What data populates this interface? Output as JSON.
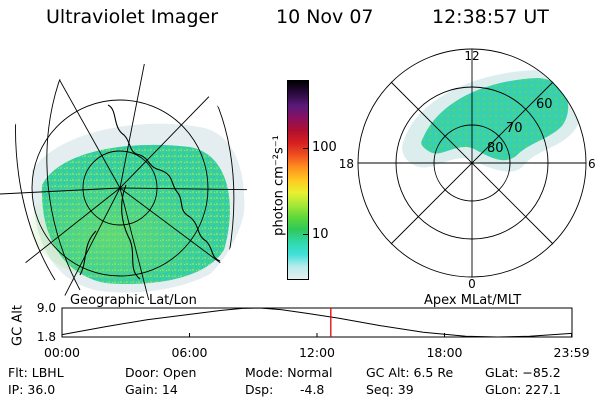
{
  "header": {
    "instrument": "Ultraviolet Imager",
    "date": "10 Nov 07",
    "time": "12:38:57 UT"
  },
  "left_panel": {
    "caption": "Geographic Lat/Lon"
  },
  "right_panel": {
    "caption": "Apex MLat/MLT",
    "mlt_labels": {
      "top": "12",
      "right": "6",
      "bottom": "0",
      "left": "18"
    },
    "lat_labels": [
      "80",
      "70",
      "60"
    ]
  },
  "colorbar": {
    "unit_label": "photon cm⁻²s⁻¹",
    "tick_labels": [
      "100",
      "10"
    ],
    "colors": [
      "#000000",
      "#2a0a3e",
      "#5a1a7a",
      "#8a1060",
      "#b01030",
      "#d62020",
      "#f05020",
      "#ff9020",
      "#ffc820",
      "#eaf030",
      "#a8e838",
      "#5fd83a",
      "#30c85a",
      "#30d8a8",
      "#40e0d8",
      "#b8ecec",
      "#e6f0f0"
    ]
  },
  "altitude_plot": {
    "ylabel": "GC Alt",
    "y_ticks": [
      "9.0",
      "1.8"
    ],
    "x_ticks": [
      "00:00",
      "06:00",
      "12:00",
      "18:00",
      "23:59"
    ],
    "current_time_hours": 12.65,
    "curve": [
      {
        "t": 0,
        "alt": 2.4
      },
      {
        "t": 2,
        "alt": 4.3
      },
      {
        "t": 4,
        "alt": 6.1
      },
      {
        "t": 6,
        "alt": 7.4
      },
      {
        "t": 7.5,
        "alt": 8.4
      },
      {
        "t": 8.5,
        "alt": 8.9
      },
      {
        "t": 9.3,
        "alt": 9.0
      },
      {
        "t": 10.3,
        "alt": 8.6
      },
      {
        "t": 11.5,
        "alt": 7.7
      },
      {
        "t": 13,
        "alt": 6.5
      },
      {
        "t": 15,
        "alt": 4.6
      },
      {
        "t": 17,
        "alt": 3.0
      },
      {
        "t": 19,
        "alt": 2.0
      },
      {
        "t": 20.5,
        "alt": 1.8
      },
      {
        "t": 22,
        "alt": 2.0
      },
      {
        "t": 23.98,
        "alt": 2.7
      }
    ]
  },
  "info": {
    "col1": [
      "Flt: LBHL",
      "IP: 36.0"
    ],
    "col2": [
      "Door: Open",
      "Gain: 14"
    ],
    "col3": [
      "Mode: Normal",
      "Dsp:",
      "-4.8"
    ],
    "col4": [
      "GC Alt: 6.5 Re",
      "Seq: 39"
    ],
    "col5": [
      "GLat: −85.2",
      "GLon: 227.1"
    ]
  }
}
